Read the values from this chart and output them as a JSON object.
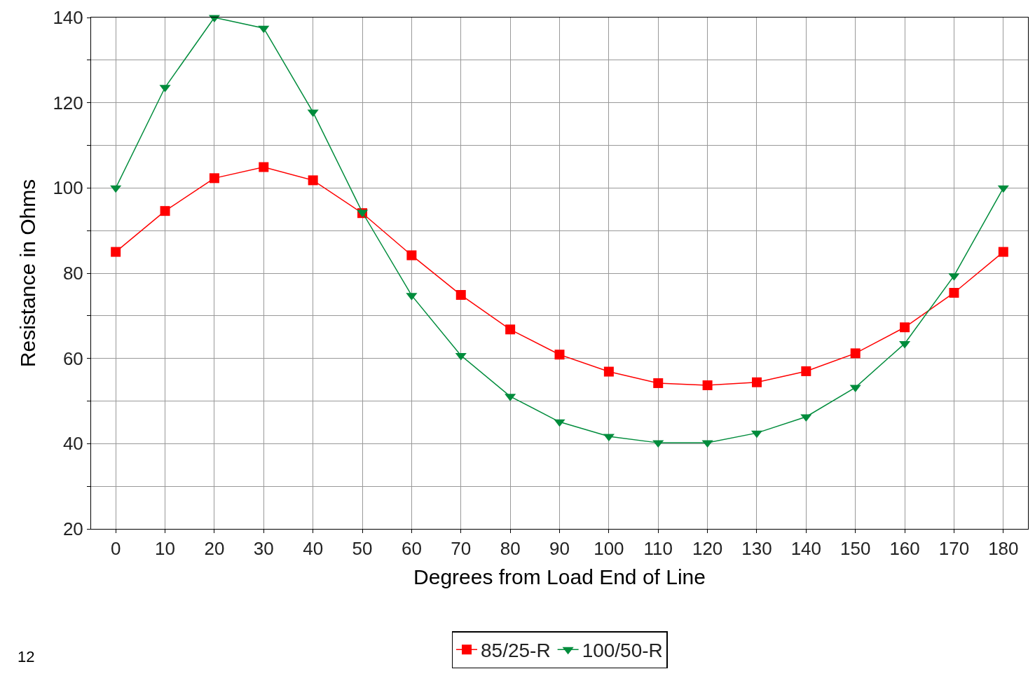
{
  "chart_data": {
    "type": "line",
    "xlabel": "Degrees from Load End of Line",
    "ylabel": "Resistance in Ohms",
    "x": [
      0,
      10,
      20,
      30,
      40,
      50,
      60,
      70,
      80,
      90,
      100,
      110,
      120,
      130,
      140,
      150,
      160,
      170,
      180
    ],
    "series": [
      {
        "name": "85/25-R",
        "color": "#ff0000",
        "marker": "square",
        "values": [
          85,
          94.6,
          102.3,
          104.9,
          101.8,
          94.1,
          84.2,
          74.9,
          66.8,
          60.9,
          56.9,
          54.2,
          53.7,
          54.4,
          57,
          61.2,
          67.3,
          75.4,
          85
        ]
      },
      {
        "name": "100/50-R",
        "color": "#008c3c",
        "marker": "triangle",
        "values": [
          100,
          123.6,
          140,
          137.5,
          117.8,
          94.3,
          74.8,
          60.7,
          51.1,
          45.1,
          41.7,
          40.2,
          40.2,
          42.5,
          46.3,
          53.2,
          63.5,
          79.4,
          100
        ]
      }
    ],
    "xlim": [
      -5,
      185
    ],
    "xticks": [
      0,
      10,
      20,
      30,
      40,
      50,
      60,
      70,
      80,
      90,
      100,
      110,
      120,
      130,
      140,
      150,
      160,
      170,
      180
    ],
    "ylim": [
      20,
      140
    ],
    "yticks": [
      20,
      {
        "value": 30,
        "label": null
      },
      40,
      {
        "value": 50,
        "label": null
      },
      60,
      {
        "value": 70,
        "label": null
      },
      80,
      {
        "value": 90,
        "label": null
      },
      100,
      {
        "value": 110,
        "label": null
      },
      120,
      {
        "value": 130,
        "label": null
      },
      140
    ],
    "grid": true,
    "legend": "bottom",
    "line_style": "solid",
    "annotations": [
      "12"
    ]
  }
}
